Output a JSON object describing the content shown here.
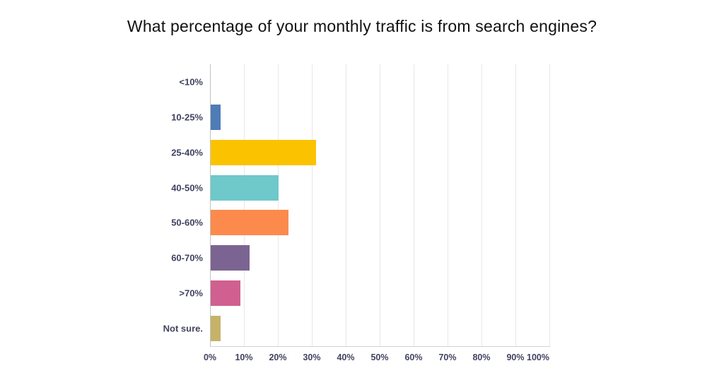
{
  "title": "What percentage of your monthly traffic is from search engines?",
  "chart_data": {
    "type": "bar",
    "orientation": "horizontal",
    "title": "What percentage of your monthly traffic is from search engines?",
    "categories": [
      "<10%",
      "10-25%",
      "25-40%",
      "40-50%",
      "50-60%",
      "60-70%",
      ">70%",
      "Not sure."
    ],
    "values": [
      0,
      3,
      31,
      20,
      23,
      11.5,
      8.75,
      3
    ],
    "bar_colors": [
      null,
      "#4e7cb6",
      "#fbc200",
      "#6fc8c9",
      "#fc8a4c",
      "#7c6492",
      "#d06090",
      "#c6b369"
    ],
    "xlabel": "",
    "ylabel": "",
    "xlim": [
      0,
      100
    ],
    "x_ticks": [
      "0%",
      "10%",
      "20%",
      "30%",
      "40%",
      "50%",
      "60%",
      "70%",
      "80%",
      "90%",
      "100%"
    ],
    "grid": "vertical",
    "legend": "none",
    "colors": {
      "grid_minor": "#e8e8e8",
      "axis_line": "#c2c2c2",
      "tick_label": "#414360",
      "title": "#111111",
      "background": "#ffffff"
    }
  }
}
